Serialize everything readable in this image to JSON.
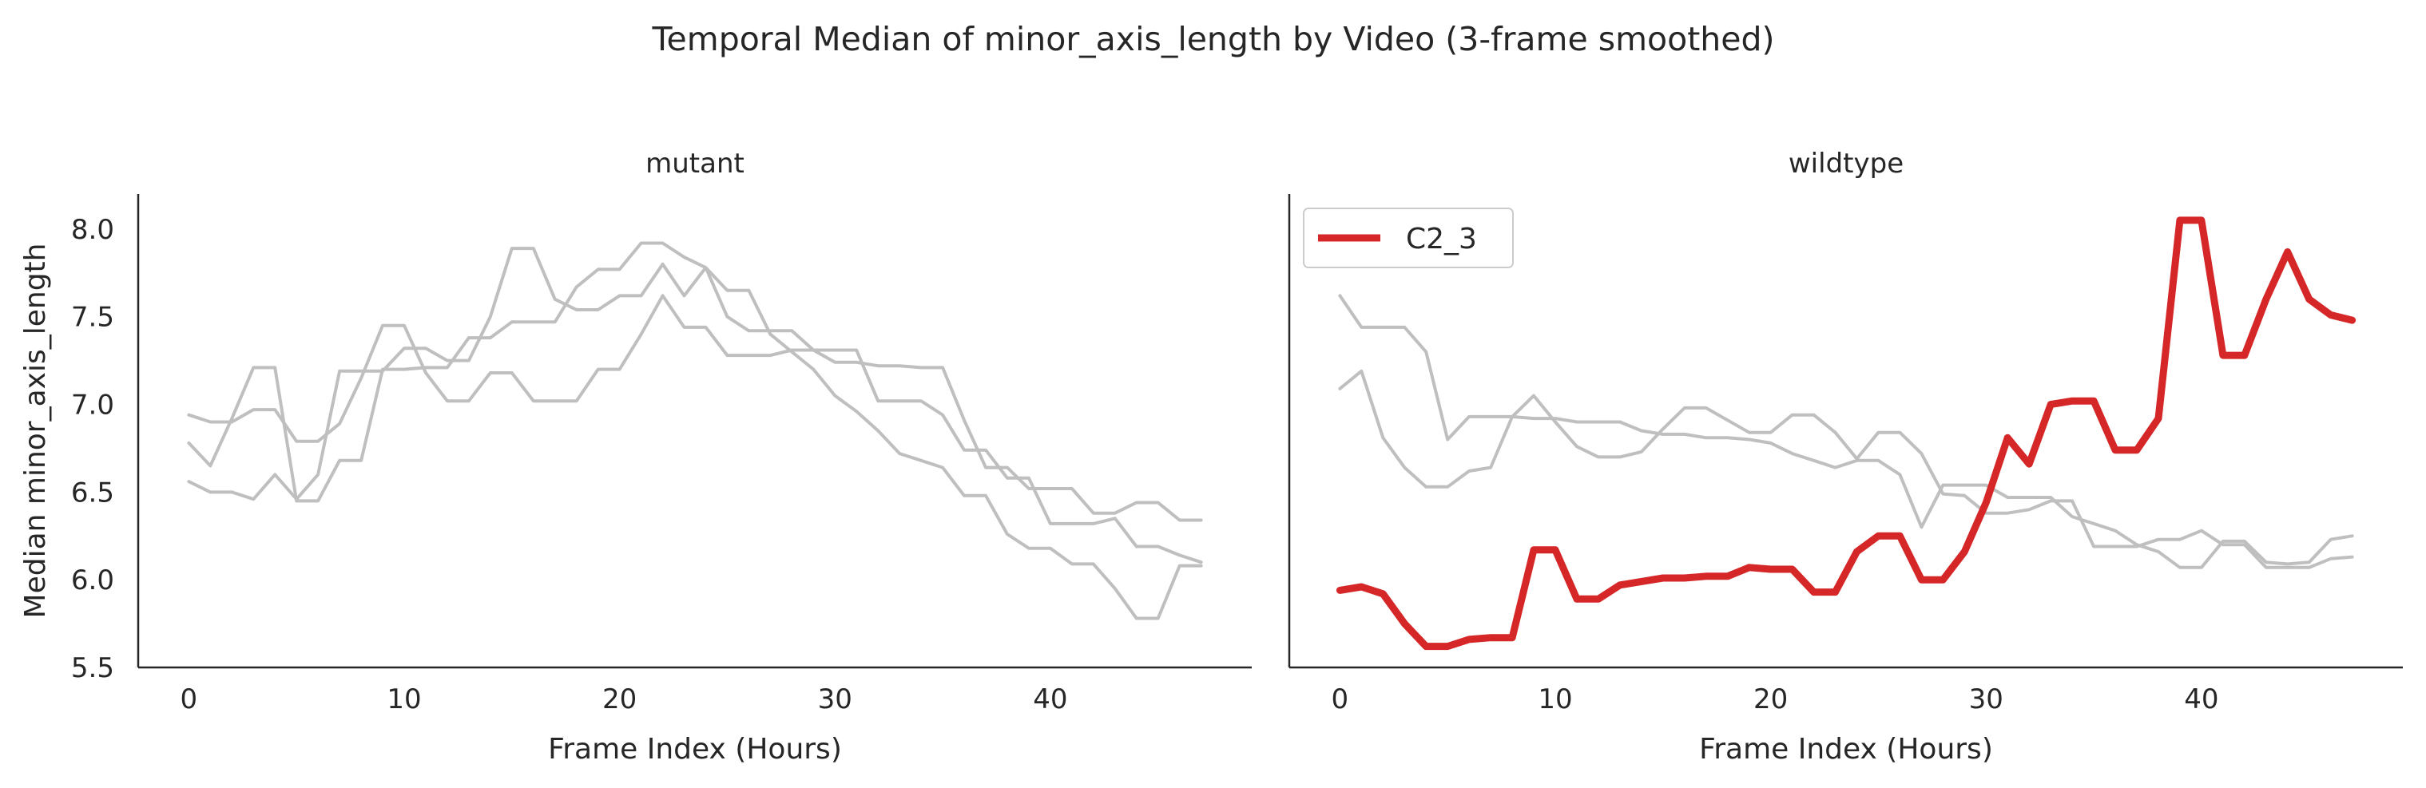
{
  "suptitle": "Temporal Median of minor_axis_length by Video (3-frame smoothed)",
  "chart_data": [
    {
      "type": "line",
      "title": "mutant",
      "xlabel": "Frame Index (Hours)",
      "ylabel": "Median minor_axis_length",
      "xlim": [
        -2.35,
        49.35
      ],
      "ylim": [
        5.5,
        8.2
      ],
      "xticks": [
        0,
        10,
        20,
        30,
        40
      ],
      "yticks": [
        5.5,
        6.0,
        6.5,
        7.0,
        7.5,
        8.0
      ],
      "ytick_labels": [
        "5.5",
        "6.0",
        "6.5",
        "7.0",
        "7.5",
        "8.0"
      ],
      "grid": false,
      "series": [
        {
          "color": "#bfbfbf",
          "x": [
            0,
            1,
            2,
            3,
            4,
            5,
            6,
            7,
            8,
            9,
            10,
            11,
            12,
            13,
            14,
            15,
            16,
            17,
            18,
            19,
            20,
            21,
            22,
            23,
            24,
            25,
            26,
            27,
            28,
            29,
            30,
            31,
            32,
            33,
            34,
            35,
            36,
            37,
            38,
            39,
            40,
            41,
            42,
            43,
            44,
            45,
            46,
            47
          ],
          "y": [
            6.94,
            6.9,
            6.9,
            6.97,
            6.97,
            6.79,
            6.79,
            6.89,
            7.15,
            7.45,
            7.45,
            7.18,
            7.02,
            7.02,
            7.18,
            7.18,
            7.02,
            7.02,
            7.02,
            7.2,
            7.2,
            7.4,
            7.62,
            7.44,
            7.44,
            7.28,
            7.28,
            7.28,
            7.31,
            7.31,
            7.24,
            7.24,
            7.22,
            7.22,
            7.21,
            7.21,
            6.91,
            6.64,
            6.64,
            6.52,
            6.52,
            6.52,
            6.38,
            6.38,
            6.44,
            6.44,
            6.34,
            6.34
          ]
        },
        {
          "color": "#bfbfbf",
          "x": [
            0,
            1,
            2,
            3,
            4,
            5,
            6,
            7,
            8,
            9,
            10,
            11,
            12,
            13,
            14,
            15,
            16,
            17,
            18,
            19,
            20,
            21,
            22,
            23,
            24,
            25,
            26,
            27,
            28,
            29,
            30,
            31,
            32,
            33,
            34,
            35,
            36,
            37,
            38,
            39,
            40,
            41,
            42,
            43,
            44,
            45,
            46,
            47
          ],
          "y": [
            6.78,
            6.65,
            6.92,
            7.21,
            7.21,
            6.45,
            6.45,
            6.68,
            6.68,
            7.2,
            7.2,
            7.21,
            7.21,
            7.38,
            7.38,
            7.47,
            7.47,
            7.47,
            7.67,
            7.77,
            7.77,
            7.92,
            7.92,
            7.84,
            7.78,
            7.65,
            7.65,
            7.4,
            7.3,
            7.2,
            7.05,
            6.96,
            6.85,
            6.72,
            6.68,
            6.64,
            6.48,
            6.48,
            6.26,
            6.18,
            6.18,
            6.09,
            6.09,
            5.95,
            5.78,
            5.78,
            6.08,
            6.08
          ]
        },
        {
          "color": "#bfbfbf",
          "x": [
            0,
            1,
            2,
            3,
            4,
            5,
            6,
            7,
            8,
            9,
            10,
            11,
            12,
            13,
            14,
            15,
            16,
            17,
            18,
            19,
            20,
            21,
            22,
            23,
            24,
            25,
            26,
            27,
            28,
            29,
            30,
            31,
            32,
            33,
            34,
            35,
            36,
            37,
            38,
            39,
            40,
            41,
            42,
            43,
            44,
            45,
            46,
            47
          ],
          "y": [
            6.56,
            6.5,
            6.5,
            6.46,
            6.6,
            6.46,
            6.6,
            7.19,
            7.19,
            7.19,
            7.32,
            7.32,
            7.25,
            7.25,
            7.5,
            7.89,
            7.89,
            7.6,
            7.54,
            7.54,
            7.62,
            7.62,
            7.8,
            7.62,
            7.78,
            7.5,
            7.42,
            7.42,
            7.42,
            7.31,
            7.31,
            7.31,
            7.02,
            7.02,
            7.02,
            6.94,
            6.74,
            6.74,
            6.58,
            6.58,
            6.32,
            6.32,
            6.32,
            6.35,
            6.19,
            6.19,
            6.14,
            6.1
          ]
        }
      ]
    },
    {
      "type": "line",
      "title": "wildtype",
      "xlabel": "Frame Index (Hours)",
      "ylabel": "",
      "xlim": [
        -2.35,
        49.35
      ],
      "ylim": [
        5.5,
        8.2
      ],
      "xticks": [
        0,
        10,
        20,
        30,
        40
      ],
      "yticks": [],
      "grid": false,
      "legend": {
        "position": "top-left",
        "entries": [
          {
            "label": "C2_3",
            "color": "#d62728"
          }
        ]
      },
      "series": [
        {
          "color": "#bfbfbf",
          "x": [
            0,
            1,
            2,
            3,
            4,
            5,
            6,
            7,
            8,
            9,
            10,
            11,
            12,
            13,
            14,
            15,
            16,
            17,
            18,
            19,
            20,
            21,
            22,
            23,
            24,
            25,
            26,
            27,
            28,
            29,
            30,
            31,
            32,
            33,
            34,
            35,
            36,
            37,
            38,
            39,
            40,
            41,
            42,
            43,
            44,
            45,
            46,
            47
          ],
          "y": [
            7.62,
            7.44,
            7.44,
            7.44,
            7.3,
            6.8,
            6.93,
            6.93,
            6.93,
            6.92,
            6.92,
            6.9,
            6.9,
            6.9,
            6.85,
            6.83,
            6.83,
            6.81,
            6.81,
            6.8,
            6.78,
            6.72,
            6.68,
            6.64,
            6.68,
            6.68,
            6.6,
            6.3,
            6.54,
            6.54,
            6.54,
            6.47,
            6.47,
            6.47,
            6.36,
            6.32,
            6.28,
            6.2,
            6.16,
            6.07,
            6.07,
            6.22,
            6.22,
            6.1,
            6.09,
            6.1,
            6.23,
            6.25
          ]
        },
        {
          "color": "#bfbfbf",
          "x": [
            0,
            1,
            2,
            3,
            4,
            5,
            6,
            7,
            8,
            9,
            10,
            11,
            12,
            13,
            14,
            15,
            16,
            17,
            18,
            19,
            20,
            21,
            22,
            23,
            24,
            25,
            26,
            27,
            28,
            29,
            30,
            31,
            32,
            33,
            34,
            35,
            36,
            37,
            38,
            39,
            40,
            41,
            42,
            43,
            44,
            45,
            46,
            47
          ],
          "y": [
            7.09,
            7.19,
            6.81,
            6.64,
            6.53,
            6.53,
            6.62,
            6.64,
            6.93,
            7.05,
            6.9,
            6.76,
            6.7,
            6.7,
            6.73,
            6.86,
            6.98,
            6.98,
            6.91,
            6.84,
            6.84,
            6.94,
            6.94,
            6.84,
            6.69,
            6.84,
            6.84,
            6.72,
            6.49,
            6.48,
            6.38,
            6.38,
            6.4,
            6.45,
            6.45,
            6.19,
            6.19,
            6.19,
            6.23,
            6.23,
            6.28,
            6.2,
            6.2,
            6.07,
            6.07,
            6.07,
            6.12,
            6.13
          ]
        },
        {
          "name": "C2_3",
          "color": "#d62728",
          "highlight": true,
          "x": [
            0,
            1,
            2,
            3,
            4,
            5,
            6,
            7,
            8,
            9,
            10,
            11,
            12,
            13,
            14,
            15,
            16,
            17,
            18,
            19,
            20,
            21,
            22,
            23,
            24,
            25,
            26,
            27,
            28,
            29,
            30,
            31,
            32,
            33,
            34,
            35,
            36,
            37,
            38,
            39,
            40,
            41,
            42,
            43,
            44,
            45,
            46,
            47
          ],
          "y": [
            5.94,
            5.96,
            5.92,
            5.75,
            5.62,
            5.62,
            5.66,
            5.67,
            5.67,
            6.17,
            6.17,
            5.89,
            5.89,
            5.97,
            5.99,
            6.01,
            6.01,
            6.02,
            6.02,
            6.07,
            6.06,
            6.06,
            5.93,
            5.93,
            6.16,
            6.25,
            6.25,
            6.0,
            6.0,
            6.16,
            6.44,
            6.81,
            6.66,
            7.0,
            7.02,
            7.02,
            6.74,
            6.74,
            6.92,
            8.05,
            8.05,
            7.28,
            7.28,
            7.6,
            7.87,
            7.6,
            7.51,
            7.48
          ]
        }
      ]
    }
  ]
}
